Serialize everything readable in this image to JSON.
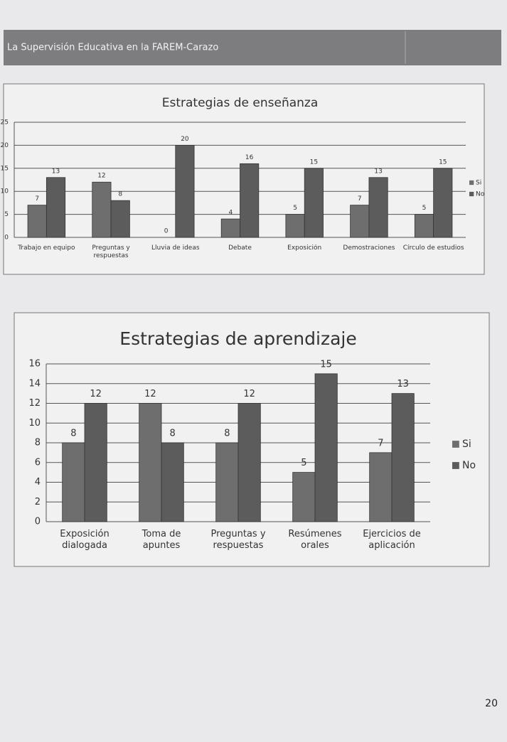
{
  "header": {
    "title": "La Supervisión Educativa en la FAREM-Carazo"
  },
  "page_number": "20",
  "chart_data": [
    {
      "type": "bar",
      "title": "Estrategias de enseñanza",
      "categories": [
        "Trabajo en equipo",
        "Preguntas y respuestas",
        "Lluvia de ideas",
        "Debate",
        "Exposición",
        "Demostraciones",
        "Círculo de estudios"
      ],
      "series": [
        {
          "name": "Si",
          "color": "#6e6e6e",
          "values": [
            7,
            12,
            0,
            4,
            5,
            7,
            5
          ]
        },
        {
          "name": "No",
          "color": "#5c5c5c",
          "values": [
            13,
            8,
            20,
            16,
            15,
            13,
            15
          ]
        }
      ],
      "ylim": [
        0,
        25
      ],
      "yticks": [
        0,
        5,
        10,
        15,
        20,
        25
      ],
      "grid": true,
      "legend": "right"
    },
    {
      "type": "bar",
      "title": "Estrategias de aprendizaje",
      "categories": [
        "Exposición dialogada",
        "Toma de apuntes",
        "Preguntas y respuestas",
        "Resúmenes orales",
        "Ejercicios de aplicación"
      ],
      "series": [
        {
          "name": "Si",
          "color": "#6e6e6e",
          "values": [
            8,
            12,
            8,
            5,
            7
          ]
        },
        {
          "name": "No",
          "color": "#5c5c5c",
          "values": [
            12,
            8,
            12,
            15,
            13
          ]
        }
      ],
      "ylim": [
        0,
        16
      ],
      "yticks": [
        0,
        2,
        4,
        6,
        8,
        10,
        12,
        14,
        16
      ],
      "grid": true,
      "legend": "right"
    }
  ]
}
